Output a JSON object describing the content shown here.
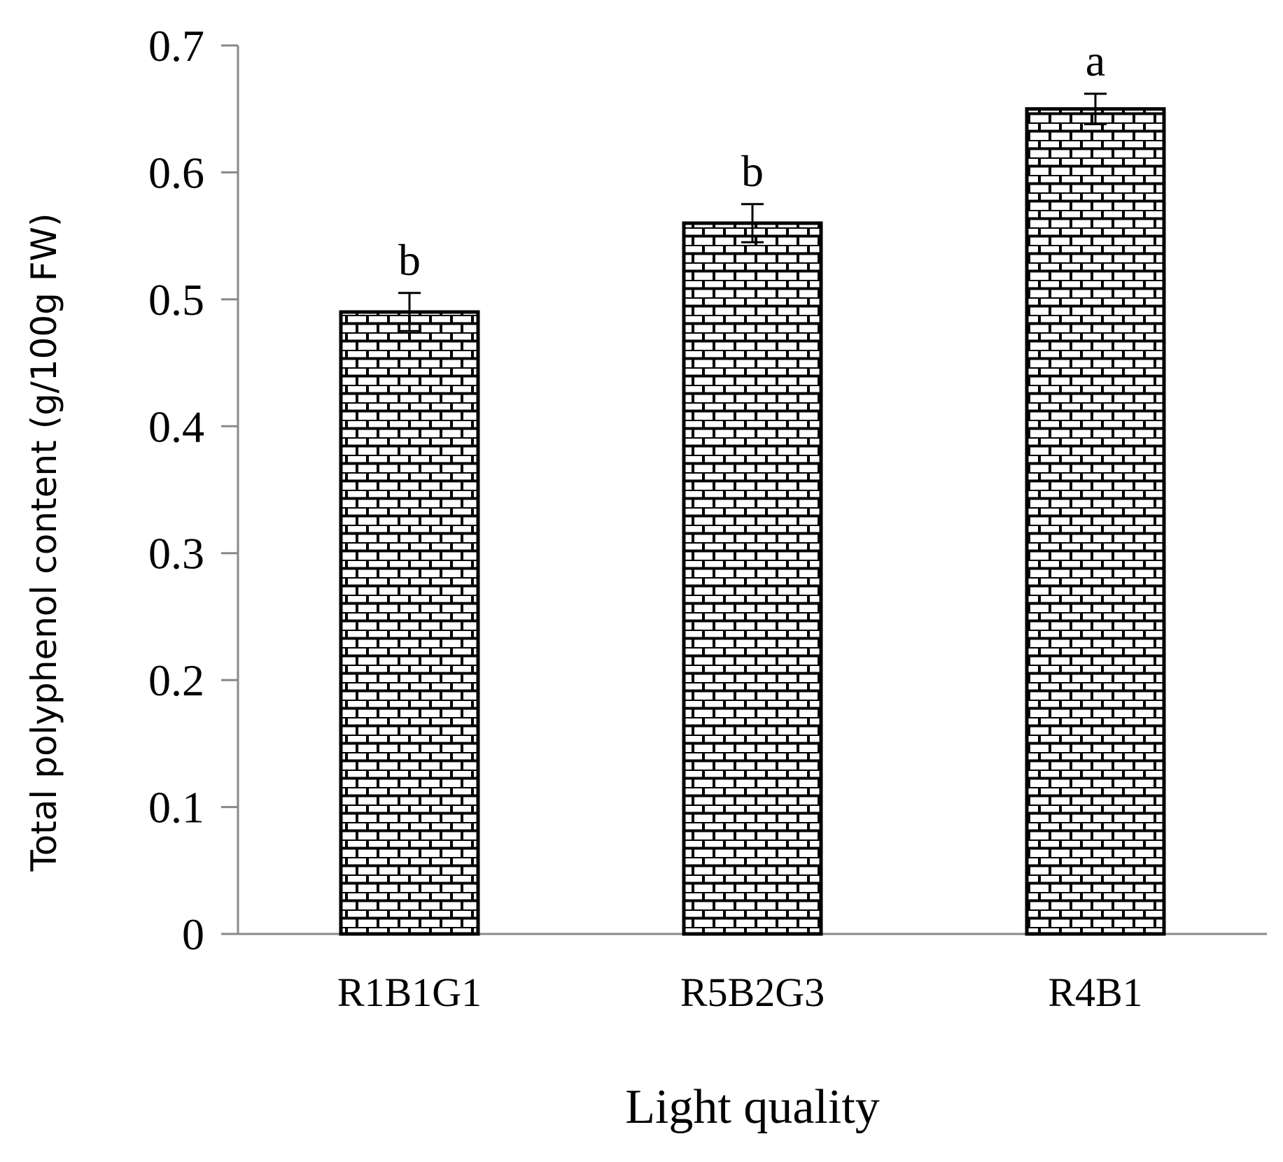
{
  "chart_data": {
    "type": "bar",
    "categories": [
      "R1B1G1",
      "R5B2G3",
      "R4B1"
    ],
    "values": [
      0.49,
      0.56,
      0.65
    ],
    "error": [
      0.015,
      0.015,
      0.012
    ],
    "significance": [
      "b",
      "b",
      "a"
    ],
    "xlabel": "Light quality",
    "ylabel": "Total polyphenol content (g/100g FW)",
    "ylim": [
      0,
      0.7
    ],
    "yticks": [
      "0",
      "0.1",
      "0.2",
      "0.3",
      "0.4",
      "0.5",
      "0.6",
      "0.7"
    ],
    "grid": false,
    "legend": "none",
    "colors": {
      "axis": "#888888",
      "bar_stroke": "#000000",
      "bar_fill": "#ffffff"
    }
  }
}
